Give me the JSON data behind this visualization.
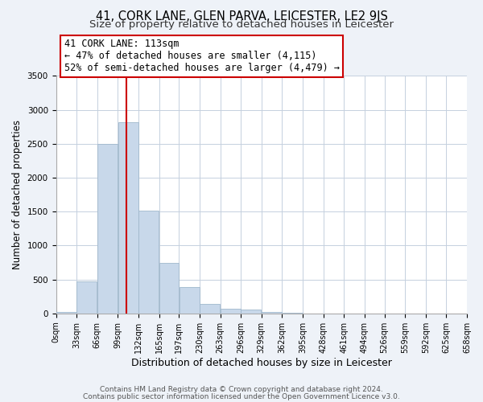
{
  "title": "41, CORK LANE, GLEN PARVA, LEICESTER, LE2 9JS",
  "subtitle": "Size of property relative to detached houses in Leicester",
  "xlabel": "Distribution of detached houses by size in Leicester",
  "ylabel": "Number of detached properties",
  "bar_left_edges": [
    0,
    33,
    66,
    99,
    132,
    165,
    197,
    230,
    263,
    296,
    329,
    362,
    395,
    428,
    461,
    494,
    526,
    559,
    592,
    625
  ],
  "bar_widths": [
    33,
    33,
    33,
    33,
    33,
    32,
    33,
    33,
    33,
    33,
    33,
    33,
    33,
    33,
    33,
    32,
    33,
    33,
    33,
    33
  ],
  "bar_heights": [
    20,
    470,
    2500,
    2820,
    1510,
    740,
    390,
    145,
    75,
    55,
    25,
    5,
    0,
    0,
    0,
    0,
    0,
    0,
    0,
    0
  ],
  "tick_labels": [
    "0sqm",
    "33sqm",
    "66sqm",
    "99sqm",
    "132sqm",
    "165sqm",
    "197sqm",
    "230sqm",
    "263sqm",
    "296sqm",
    "329sqm",
    "362sqm",
    "395sqm",
    "428sqm",
    "461sqm",
    "494sqm",
    "526sqm",
    "559sqm",
    "592sqm",
    "625sqm",
    "658sqm"
  ],
  "bar_color": "#c8d8ea",
  "bar_edge_color": "#a0b8cc",
  "vline_x": 113,
  "vline_color": "#cc0000",
  "ylim": [
    0,
    3500
  ],
  "xlim": [
    0,
    658
  ],
  "annotation_title": "41 CORK LANE: 113sqm",
  "annotation_line1": "← 47% of detached houses are smaller (4,115)",
  "annotation_line2": "52% of semi-detached houses are larger (4,479) →",
  "footer_line1": "Contains HM Land Registry data © Crown copyright and database right 2024.",
  "footer_line2": "Contains public sector information licensed under the Open Government Licence v3.0.",
  "bg_color": "#eef2f8",
  "plot_bg_color": "#ffffff",
  "title_fontsize": 10.5,
  "subtitle_fontsize": 9.5,
  "annotation_fontsize": 8.5,
  "tick_fontsize": 7,
  "ylabel_fontsize": 8.5,
  "xlabel_fontsize": 9,
  "footer_fontsize": 6.5
}
